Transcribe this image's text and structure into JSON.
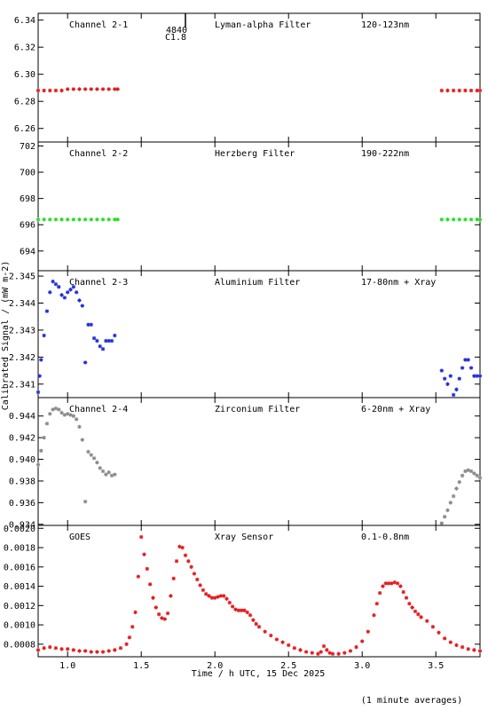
{
  "colors": {
    "red": "#e31a1c",
    "green": "#22dd22",
    "blue": "#1f2fd6",
    "grey": "#8a8a8a",
    "black": "#000000"
  },
  "chart_data": {
    "type": "scatter",
    "xlabel": "Time / h UTC, 15 Dec 2025",
    "ylabel": "Calibrated Signal / (mW m-2)",
    "footnote": "(1 minute averages)",
    "xlim": [
      0.8,
      3.8
    ],
    "xticks": [
      "1.0",
      "1.5",
      "2.0",
      "2.5",
      "3.0",
      "3.5"
    ],
    "xtick_values": [
      1.0,
      1.5,
      2.0,
      2.5,
      3.0,
      3.5
    ],
    "flare_marker": {
      "x": 1.8,
      "label_top": "4840",
      "label_bottom": "C1.8"
    },
    "panels": [
      {
        "channel": "Channel 2-1",
        "filter": "Lyman-alpha Filter",
        "band": "120-123nm",
        "color": "#e31a1c",
        "ylim": [
          6.25,
          6.345
        ],
        "yticks": [
          "6.34",
          "6.32",
          "6.30",
          "6.28",
          "6.26"
        ],
        "ytick_values": [
          6.34,
          6.32,
          6.3,
          6.28,
          6.26
        ],
        "series": [
          {
            "x": [
              0.8,
              0.84,
              0.88,
              0.92,
              0.96,
              1.0,
              1.04,
              1.08,
              1.12,
              1.16,
              1.2,
              1.24,
              1.28,
              1.32,
              1.34
            ],
            "y": [
              6.288,
              6.288,
              6.288,
              6.288,
              6.288,
              6.289,
              6.289,
              6.289,
              6.289,
              6.289,
              6.289,
              6.289,
              6.289,
              6.289,
              6.289
            ]
          },
          {
            "x": [
              3.54,
              3.58,
              3.62,
              3.66,
              3.7,
              3.74,
              3.78,
              3.8
            ],
            "y": [
              6.288,
              6.288,
              6.288,
              6.288,
              6.288,
              6.288,
              6.288,
              6.288
            ]
          }
        ]
      },
      {
        "channel": "Channel 2-2",
        "filter": "Herzberg Filter",
        "band": "190-222nm",
        "color": "#22dd22",
        "ylim": [
          692.5,
          702.3
        ],
        "yticks": [
          "702",
          "700",
          "698",
          "696",
          "694"
        ],
        "ytick_values": [
          702,
          700,
          698,
          696,
          694
        ],
        "series": [
          {
            "x": [
              0.8,
              0.84,
              0.88,
              0.92,
              0.96,
              1.0,
              1.04,
              1.08,
              1.12,
              1.16,
              1.2,
              1.24,
              1.28,
              1.32,
              1.34
            ],
            "y": [
              696.4,
              696.4,
              696.4,
              696.4,
              696.4,
              696.4,
              696.4,
              696.4,
              696.4,
              696.4,
              696.4,
              696.4,
              696.4,
              696.4,
              696.4
            ]
          },
          {
            "x": [
              3.54,
              3.58,
              3.62,
              3.66,
              3.7,
              3.74,
              3.78,
              3.8
            ],
            "y": [
              696.4,
              696.4,
              696.4,
              696.4,
              696.4,
              696.4,
              696.4,
              696.4
            ]
          }
        ]
      },
      {
        "channel": "Channel 2-3",
        "filter": "Aluminium Filter",
        "band": "17-80nm + Xray",
        "color": "#1f2fd6",
        "ylim": [
          2.3405,
          2.3452
        ],
        "yticks": [
          "2.345",
          "2.344",
          "2.343",
          "2.342",
          "2.341"
        ],
        "ytick_values": [
          2.345,
          2.344,
          2.343,
          2.342,
          2.341
        ],
        "series": [
          {
            "x": [
              0.8,
              0.81,
              0.82,
              0.84,
              0.86,
              0.88,
              0.9,
              0.92,
              0.94,
              0.96,
              0.98,
              1.0,
              1.02,
              1.04,
              1.06,
              1.08,
              1.1,
              1.12,
              1.14,
              1.16,
              1.18,
              1.2,
              1.22,
              1.24,
              1.26,
              1.28,
              1.3,
              1.32
            ],
            "y": [
              2.3407,
              2.3413,
              2.3419,
              2.3428,
              2.3437,
              2.3444,
              2.3448,
              2.3447,
              2.3446,
              2.3443,
              2.3442,
              2.3444,
              2.3445,
              2.3446,
              2.3444,
              2.3441,
              2.3439,
              2.3418,
              2.3432,
              2.3432,
              2.3427,
              2.3426,
              2.3424,
              2.3423,
              2.3426,
              2.3426,
              2.3426,
              2.3428
            ]
          },
          {
            "x": [
              3.54,
              3.56,
              3.58,
              3.6,
              3.62,
              3.64,
              3.66,
              3.68,
              3.7,
              3.72,
              3.74,
              3.76,
              3.78,
              3.8
            ],
            "y": [
              2.3415,
              2.3412,
              2.341,
              2.3413,
              2.3406,
              2.3408,
              2.3412,
              2.3416,
              2.3419,
              2.3419,
              2.3416,
              2.3413,
              2.3413,
              2.3413
            ]
          }
        ]
      },
      {
        "channel": "Channel 2-4",
        "filter": "Zirconium Filter",
        "band": "6-20nm + Xray",
        "color": "#8a8a8a",
        "ylim": [
          0.9339,
          0.9457
        ],
        "yticks": [
          "0.944",
          "0.942",
          "0.940",
          "0.938",
          "0.936",
          "0.934"
        ],
        "ytick_values": [
          0.944,
          0.942,
          0.94,
          0.938,
          0.936,
          0.934
        ],
        "series": [
          {
            "x": [
              0.8,
              0.82,
              0.84,
              0.86,
              0.88,
              0.9,
              0.92,
              0.94,
              0.96,
              0.98,
              1.0,
              1.02,
              1.04,
              1.06,
              1.08,
              1.1,
              1.12,
              1.14,
              1.16,
              1.18,
              1.2,
              1.22,
              1.24,
              1.26,
              1.28,
              1.3,
              1.32
            ],
            "y": [
              0.9395,
              0.9408,
              0.942,
              0.9433,
              0.9442,
              0.9446,
              0.9447,
              0.9446,
              0.9443,
              0.9441,
              0.9442,
              0.9441,
              0.944,
              0.9437,
              0.943,
              0.9418,
              0.9361,
              0.9407,
              0.9404,
              0.9401,
              0.9397,
              0.9392,
              0.9389,
              0.9386,
              0.9388,
              0.9385,
              0.9386
            ]
          },
          {
            "x": [
              3.54,
              3.56,
              3.58,
              3.6,
              3.62,
              3.64,
              3.66,
              3.68,
              3.7,
              3.72,
              3.74,
              3.76,
              3.78,
              3.8
            ],
            "y": [
              0.9341,
              0.9347,
              0.9353,
              0.936,
              0.9366,
              0.9373,
              0.9379,
              0.9385,
              0.9389,
              0.939,
              0.9389,
              0.9387,
              0.9385,
              0.9383
            ]
          }
        ]
      },
      {
        "channel": "GOES",
        "filter": "Xray Sensor",
        "band": "0.1-0.8nm",
        "color": "#e31a1c",
        "ylim": [
          0.00067,
          0.00203
        ],
        "yticks": [
          "0.0020",
          "0.0018",
          "0.0016",
          "0.0014",
          "0.0012",
          "0.0010",
          "0.0008"
        ],
        "ytick_values": [
          0.002,
          0.0018,
          0.0016,
          0.0014,
          0.0012,
          0.001,
          0.0008
        ],
        "series": [
          {
            "x": [
              0.8,
              0.84,
              0.88,
              0.92,
              0.96,
              1.0,
              1.04,
              1.08,
              1.12,
              1.16,
              1.2,
              1.24,
              1.28,
              1.32,
              1.36,
              1.4,
              1.42,
              1.44,
              1.46,
              1.48,
              1.5,
              1.52,
              1.54,
              1.56,
              1.58,
              1.6,
              1.62,
              1.64,
              1.66,
              1.68,
              1.7,
              1.72,
              1.74,
              1.76,
              1.78,
              1.8,
              1.82,
              1.84,
              1.86,
              1.88,
              1.9,
              1.92,
              1.94,
              1.96,
              1.98,
              2.0,
              2.02,
              2.04,
              2.06,
              2.08,
              2.1,
              2.12,
              2.14,
              2.16,
              2.18,
              2.2,
              2.22,
              2.24,
              2.26,
              2.28,
              2.3,
              2.34,
              2.38,
              2.42,
              2.46,
              2.5,
              2.54,
              2.58,
              2.62,
              2.66,
              2.7,
              2.72,
              2.74,
              2.76,
              2.78,
              2.8,
              2.84,
              2.88,
              2.92,
              2.96,
              3.0,
              3.04,
              3.08,
              3.1,
              3.12,
              3.14,
              3.16,
              3.18,
              3.2,
              3.22,
              3.24,
              3.26,
              3.28,
              3.3,
              3.32,
              3.34,
              3.36,
              3.38,
              3.4,
              3.44,
              3.48,
              3.52,
              3.56,
              3.6,
              3.64,
              3.68,
              3.72,
              3.76,
              3.8
            ],
            "y": [
              0.00074,
              0.00076,
              0.00077,
              0.00076,
              0.00075,
              0.00075,
              0.00074,
              0.00073,
              0.00073,
              0.00072,
              0.00072,
              0.00072,
              0.00073,
              0.00074,
              0.00076,
              0.0008,
              0.00087,
              0.00098,
              0.00113,
              0.0015,
              0.00191,
              0.00173,
              0.00158,
              0.00142,
              0.00128,
              0.00118,
              0.00111,
              0.00107,
              0.00106,
              0.00112,
              0.0013,
              0.00148,
              0.00166,
              0.00181,
              0.0018,
              0.00172,
              0.00166,
              0.0016,
              0.00153,
              0.00147,
              0.00141,
              0.00136,
              0.00132,
              0.0013,
              0.00128,
              0.00128,
              0.00129,
              0.0013,
              0.0013,
              0.00127,
              0.00123,
              0.00119,
              0.00116,
              0.00115,
              0.00115,
              0.00115,
              0.00113,
              0.0011,
              0.00105,
              0.00101,
              0.00098,
              0.00093,
              0.00089,
              0.00085,
              0.00082,
              0.00079,
              0.00076,
              0.00074,
              0.00072,
              0.00071,
              0.0007,
              0.00072,
              0.00078,
              0.00074,
              0.00071,
              0.0007,
              0.0007,
              0.00071,
              0.00073,
              0.00077,
              0.00083,
              0.00093,
              0.0011,
              0.00122,
              0.00133,
              0.0014,
              0.00143,
              0.00143,
              0.00143,
              0.00144,
              0.00143,
              0.0014,
              0.00134,
              0.00128,
              0.00122,
              0.00118,
              0.00114,
              0.00111,
              0.00108,
              0.00104,
              0.00098,
              0.00092,
              0.00086,
              0.00082,
              0.00079,
              0.00077,
              0.00075,
              0.00074,
              0.00073
            ]
          }
        ]
      }
    ]
  }
}
